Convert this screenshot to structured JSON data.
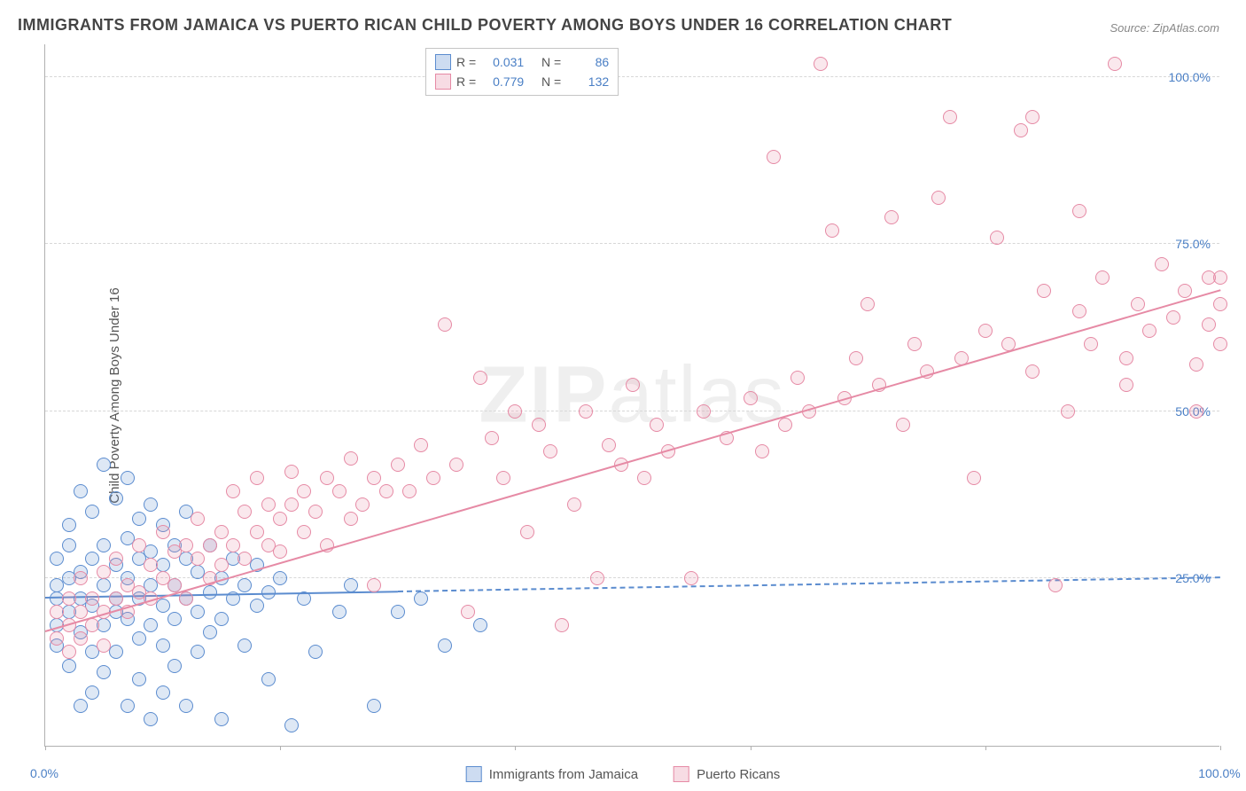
{
  "title": "IMMIGRANTS FROM JAMAICA VS PUERTO RICAN CHILD POVERTY AMONG BOYS UNDER 16 CORRELATION CHART",
  "source_prefix": "Source: ",
  "source_name": "ZipAtlas.com",
  "ylabel": "Child Poverty Among Boys Under 16",
  "watermark_bold": "ZIP",
  "watermark_thin": "atlas",
  "chart": {
    "type": "scatter",
    "xlim": [
      0,
      100
    ],
    "ylim": [
      0,
      105
    ],
    "ytick_values": [
      25,
      50,
      75,
      100
    ],
    "ytick_labels": [
      "25.0%",
      "50.0%",
      "75.0%",
      "100.0%"
    ],
    "xtick_values": [
      0,
      20,
      40,
      60,
      80,
      100
    ],
    "xtick_labels": [
      "0.0%",
      "",
      "",
      "",
      "",
      "100.0%"
    ],
    "grid_color": "#d7d7d7",
    "axis_color": "#b0b0b0",
    "tick_label_color": "#4a7fc5",
    "background_color": "#ffffff",
    "marker_radius": 8,
    "marker_stroke_width": 1.5,
    "marker_fill_opacity": 0.2,
    "series": [
      {
        "id": "jamaica",
        "label": "Immigrants from Jamaica",
        "color_stroke": "#5b8ccf",
        "color_fill": "#5b8ccf",
        "r_value": "0.031",
        "n_value": "86",
        "trend": {
          "x0": 0,
          "y0": 22,
          "x1": 100,
          "y1": 25,
          "solid_until_x": 30,
          "line_width": 2
        },
        "points": [
          [
            1,
            22
          ],
          [
            1,
            18
          ],
          [
            1,
            28
          ],
          [
            1,
            24
          ],
          [
            1,
            15
          ],
          [
            2,
            30
          ],
          [
            2,
            12
          ],
          [
            2,
            25
          ],
          [
            2,
            33
          ],
          [
            2,
            20
          ],
          [
            3,
            22
          ],
          [
            3,
            38
          ],
          [
            3,
            17
          ],
          [
            3,
            26
          ],
          [
            3,
            6
          ],
          [
            4,
            28
          ],
          [
            4,
            21
          ],
          [
            4,
            14
          ],
          [
            4,
            35
          ],
          [
            4,
            8
          ],
          [
            5,
            24
          ],
          [
            5,
            42
          ],
          [
            5,
            18
          ],
          [
            5,
            30
          ],
          [
            5,
            11
          ],
          [
            6,
            20
          ],
          [
            6,
            27
          ],
          [
            6,
            37
          ],
          [
            6,
            14
          ],
          [
            6,
            22
          ],
          [
            7,
            19
          ],
          [
            7,
            31
          ],
          [
            7,
            6
          ],
          [
            7,
            25
          ],
          [
            7,
            40
          ],
          [
            8,
            22
          ],
          [
            8,
            28
          ],
          [
            8,
            16
          ],
          [
            8,
            34
          ],
          [
            8,
            10
          ],
          [
            9,
            24
          ],
          [
            9,
            18
          ],
          [
            9,
            29
          ],
          [
            9,
            4
          ],
          [
            9,
            36
          ],
          [
            10,
            21
          ],
          [
            10,
            15
          ],
          [
            10,
            27
          ],
          [
            10,
            33
          ],
          [
            10,
            8
          ],
          [
            11,
            24
          ],
          [
            11,
            19
          ],
          [
            11,
            30
          ],
          [
            11,
            12
          ],
          [
            12,
            22
          ],
          [
            12,
            28
          ],
          [
            12,
            6
          ],
          [
            12,
            35
          ],
          [
            13,
            20
          ],
          [
            13,
            26
          ],
          [
            13,
            14
          ],
          [
            14,
            23
          ],
          [
            14,
            30
          ],
          [
            14,
            17
          ],
          [
            15,
            25
          ],
          [
            15,
            19
          ],
          [
            15,
            4
          ],
          [
            16,
            22
          ],
          [
            16,
            28
          ],
          [
            17,
            24
          ],
          [
            17,
            15
          ],
          [
            18,
            21
          ],
          [
            18,
            27
          ],
          [
            19,
            23
          ],
          [
            19,
            10
          ],
          [
            20,
            25
          ],
          [
            21,
            3
          ],
          [
            22,
            22
          ],
          [
            23,
            14
          ],
          [
            25,
            20
          ],
          [
            26,
            24
          ],
          [
            28,
            6
          ],
          [
            30,
            20
          ],
          [
            32,
            22
          ],
          [
            34,
            15
          ],
          [
            37,
            18
          ]
        ]
      },
      {
        "id": "puertorican",
        "label": "Puerto Ricans",
        "color_stroke": "#e68aa5",
        "color_fill": "#e68aa5",
        "r_value": "0.779",
        "n_value": "132",
        "trend": {
          "x0": 0,
          "y0": 17,
          "x1": 100,
          "y1": 68,
          "solid_until_x": 100,
          "line_width": 2
        },
        "points": [
          [
            1,
            16
          ],
          [
            1,
            20
          ],
          [
            2,
            18
          ],
          [
            2,
            14
          ],
          [
            2,
            22
          ],
          [
            3,
            20
          ],
          [
            3,
            16
          ],
          [
            3,
            25
          ],
          [
            4,
            18
          ],
          [
            4,
            22
          ],
          [
            5,
            20
          ],
          [
            5,
            26
          ],
          [
            5,
            15
          ],
          [
            6,
            22
          ],
          [
            6,
            28
          ],
          [
            7,
            20
          ],
          [
            7,
            24
          ],
          [
            8,
            23
          ],
          [
            8,
            30
          ],
          [
            9,
            22
          ],
          [
            9,
            27
          ],
          [
            10,
            25
          ],
          [
            10,
            32
          ],
          [
            11,
            24
          ],
          [
            11,
            29
          ],
          [
            12,
            30
          ],
          [
            12,
            22
          ],
          [
            13,
            28
          ],
          [
            13,
            34
          ],
          [
            14,
            30
          ],
          [
            14,
            25
          ],
          [
            15,
            32
          ],
          [
            15,
            27
          ],
          [
            16,
            30
          ],
          [
            16,
            38
          ],
          [
            17,
            28
          ],
          [
            17,
            35
          ],
          [
            18,
            32
          ],
          [
            18,
            40
          ],
          [
            19,
            30
          ],
          [
            19,
            36
          ],
          [
            20,
            34
          ],
          [
            20,
            29
          ],
          [
            21,
            36
          ],
          [
            21,
            41
          ],
          [
            22,
            32
          ],
          [
            22,
            38
          ],
          [
            23,
            35
          ],
          [
            24,
            40
          ],
          [
            24,
            30
          ],
          [
            25,
            38
          ],
          [
            26,
            34
          ],
          [
            26,
            43
          ],
          [
            27,
            36
          ],
          [
            28,
            40
          ],
          [
            28,
            24
          ],
          [
            29,
            38
          ],
          [
            30,
            42
          ],
          [
            31,
            38
          ],
          [
            32,
            45
          ],
          [
            33,
            40
          ],
          [
            34,
            63
          ],
          [
            35,
            42
          ],
          [
            36,
            20
          ],
          [
            37,
            55
          ],
          [
            38,
            46
          ],
          [
            39,
            40
          ],
          [
            40,
            50
          ],
          [
            41,
            32
          ],
          [
            42,
            48
          ],
          [
            43,
            44
          ],
          [
            44,
            18
          ],
          [
            45,
            36
          ],
          [
            46,
            50
          ],
          [
            47,
            25
          ],
          [
            48,
            45
          ],
          [
            49,
            42
          ],
          [
            50,
            54
          ],
          [
            51,
            40
          ],
          [
            52,
            48
          ],
          [
            53,
            44
          ],
          [
            55,
            25
          ],
          [
            56,
            50
          ],
          [
            58,
            46
          ],
          [
            60,
            52
          ],
          [
            61,
            44
          ],
          [
            62,
            88
          ],
          [
            63,
            48
          ],
          [
            64,
            55
          ],
          [
            65,
            50
          ],
          [
            66,
            102
          ],
          [
            67,
            77
          ],
          [
            68,
            52
          ],
          [
            69,
            58
          ],
          [
            70,
            66
          ],
          [
            71,
            54
          ],
          [
            72,
            79
          ],
          [
            73,
            48
          ],
          [
            74,
            60
          ],
          [
            75,
            56
          ],
          [
            76,
            82
          ],
          [
            77,
            94
          ],
          [
            78,
            58
          ],
          [
            79,
            40
          ],
          [
            80,
            62
          ],
          [
            81,
            76
          ],
          [
            82,
            60
          ],
          [
            83,
            92
          ],
          [
            84,
            56
          ],
          [
            85,
            68
          ],
          [
            86,
            24
          ],
          [
            87,
            50
          ],
          [
            88,
            65
          ],
          [
            89,
            60
          ],
          [
            90,
            70
          ],
          [
            91,
            102
          ],
          [
            92,
            58
          ],
          [
            93,
            66
          ],
          [
            94,
            62
          ],
          [
            95,
            72
          ],
          [
            96,
            64
          ],
          [
            97,
            68
          ],
          [
            98,
            57
          ],
          [
            99,
            70
          ],
          [
            99,
            63
          ],
          [
            100,
            66
          ],
          [
            100,
            70
          ],
          [
            100,
            60
          ],
          [
            98,
            50
          ],
          [
            84,
            94
          ],
          [
            88,
            80
          ],
          [
            92,
            54
          ]
        ]
      }
    ]
  },
  "legend_top": {
    "r_label": "R =",
    "n_label": "N ="
  },
  "legend_bottom_labels": [
    "Immigrants from Jamaica",
    "Puerto Ricans"
  ]
}
